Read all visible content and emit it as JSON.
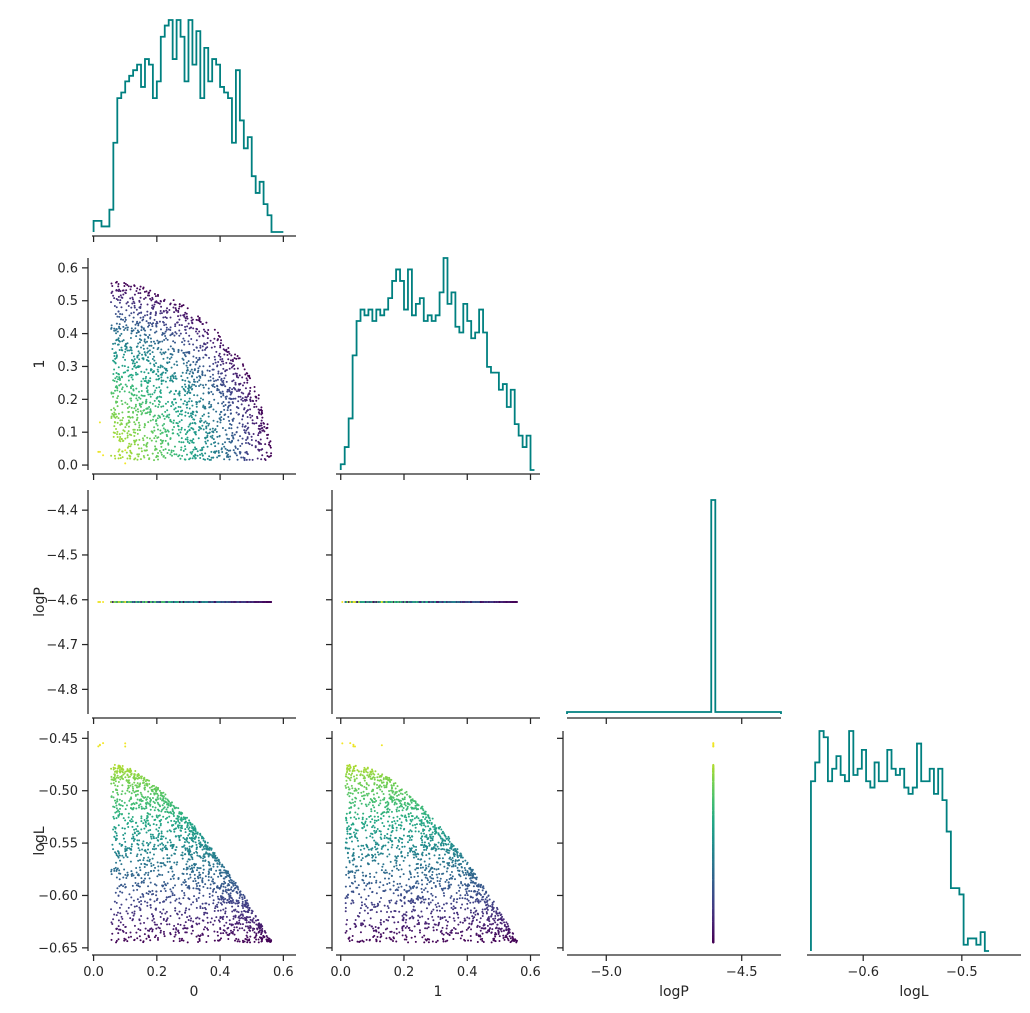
{
  "chart_data": {
    "type": "pairplot-corner",
    "variables": [
      "0",
      "1",
      "logP",
      "logL"
    ],
    "hist_color": "#008080",
    "colormap": "viridis",
    "color_by": "logL",
    "grid": false,
    "n_points": 1800,
    "axes": {
      "0": {
        "range": [
          -0.005,
          0.64
        ],
        "ticks": [
          "0.0",
          "0.2",
          "0.4",
          "0.6"
        ],
        "tick_values": [
          0.0,
          0.2,
          0.4,
          0.6
        ],
        "label": "0"
      },
      "1": {
        "range": [
          -0.015,
          0.63
        ],
        "ticks": [
          "0.0",
          "0.1",
          "0.2",
          "0.3",
          "0.4",
          "0.5",
          "0.6"
        ],
        "tick_values": [
          0.0,
          0.1,
          0.2,
          0.3,
          0.4,
          0.5,
          0.6
        ],
        "label": "1"
      },
      "logP": {
        "range": [
          -5.145,
          -4.355
        ],
        "yrange": [
          -4.855,
          -4.355
        ],
        "xticks": [
          "−5.0",
          "−4.5"
        ],
        "xtick_values": [
          -5.0,
          -4.5
        ],
        "yticks": [
          "−4.4",
          "−4.5",
          "−4.6",
          "−4.7",
          "−4.8"
        ],
        "ytick_values": [
          -4.4,
          -4.5,
          -4.6,
          -4.7,
          -4.8
        ],
        "label": "logP"
      },
      "logL": {
        "range": [
          -0.653,
          -0.443
        ],
        "xrange": [
          -0.657,
          -0.44
        ],
        "xticks": [
          "−0.6",
          "−0.5"
        ],
        "xtick_values": [
          -0.6,
          -0.5
        ],
        "yticks": [
          "−0.45",
          "−0.50",
          "−0.55",
          "−0.60",
          "−0.65"
        ],
        "ytick_values": [
          -0.45,
          -0.5,
          -0.55,
          -0.6,
          -0.65
        ],
        "label": "logL"
      }
    },
    "logP_value": -4.605,
    "hist_0": {
      "edges_start": 0.0,
      "bin_width": 0.0125,
      "counts": [
        2,
        2,
        1,
        1,
        4,
        16,
        24,
        25,
        27,
        28,
        29,
        30,
        26,
        31,
        30,
        24,
        27,
        35,
        37,
        38,
        31,
        38,
        35,
        27,
        38,
        30,
        36,
        24,
        33,
        27,
        31,
        30,
        26,
        25,
        24,
        16,
        29,
        20,
        15,
        17,
        10,
        7,
        9,
        5,
        3,
        0,
        0,
        0
      ]
    },
    "hist_1": {
      "edges_start": 0.0,
      "bin_width": 0.0125,
      "counts": [
        1,
        4,
        9,
        20,
        26,
        28,
        27,
        28,
        26,
        28,
        27,
        28,
        30,
        33,
        35,
        33,
        28,
        35,
        27,
        29,
        30,
        26,
        27,
        26,
        27,
        31,
        37,
        29,
        31,
        25,
        24,
        29,
        26,
        23,
        24,
        28,
        24,
        18,
        17,
        17,
        14,
        15,
        11,
        14,
        8,
        6,
        4,
        6,
        0
      ]
    },
    "hist_logP": {
      "bin_center": -4.605,
      "bin_width": 0.015,
      "peak_count": 1800,
      "baseline_count": 2
    },
    "hist_logL": {
      "edges_start": -0.653,
      "bin_width": 0.0043,
      "counts": [
        27,
        30,
        35,
        34,
        27,
        29,
        31,
        28,
        27,
        35,
        28,
        29,
        32,
        27,
        26,
        30,
        27,
        27,
        32,
        29,
        28,
        29,
        26,
        25,
        26,
        33,
        27,
        27,
        29,
        25,
        29,
        24,
        19,
        10,
        10,
        9,
        1,
        2,
        2,
        1,
        3,
        0
      ]
    }
  }
}
